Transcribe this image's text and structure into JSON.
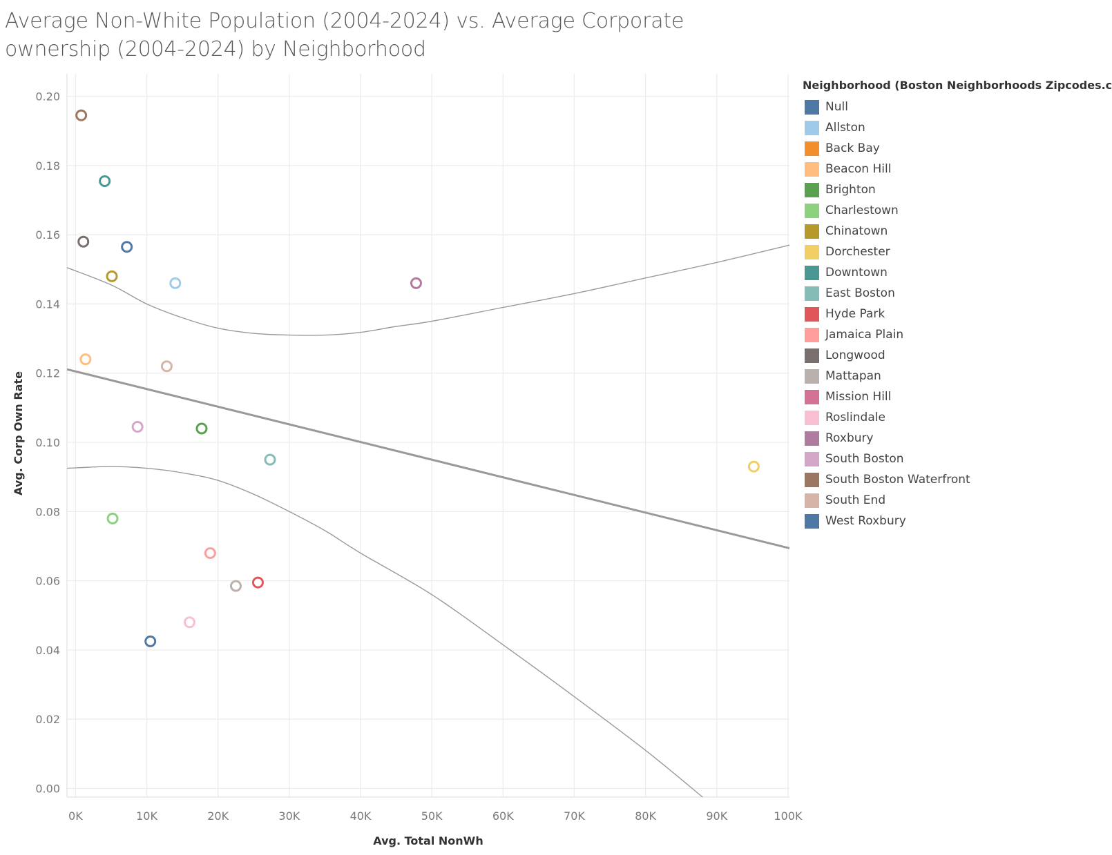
{
  "title": "Average Non-White Population (2004-2024) vs. Average Corporate ownership (2004-2024) by Neighborhood",
  "legend": {
    "title": "Neighborhood (Boston Neighborhoods Zipcodes.csv)",
    "items": [
      {
        "label": "Null",
        "color": "#4e79a7"
      },
      {
        "label": "Allston",
        "color": "#a0cbe8"
      },
      {
        "label": "Back Bay",
        "color": "#f28e2b"
      },
      {
        "label": "Beacon Hill",
        "color": "#ffbe7d"
      },
      {
        "label": "Brighton",
        "color": "#59a14f"
      },
      {
        "label": "Charlestown",
        "color": "#8cd17d"
      },
      {
        "label": "Chinatown",
        "color": "#b6992d"
      },
      {
        "label": "Dorchester",
        "color": "#f1ce63"
      },
      {
        "label": "Downtown",
        "color": "#499894"
      },
      {
        "label": "East Boston",
        "color": "#86bcb6"
      },
      {
        "label": "Hyde Park",
        "color": "#e15759"
      },
      {
        "label": "Jamaica Plain",
        "color": "#ff9d9a"
      },
      {
        "label": "Longwood",
        "color": "#79706e"
      },
      {
        "label": "Mattapan",
        "color": "#bab0ac"
      },
      {
        "label": "Mission Hill",
        "color": "#d37295"
      },
      {
        "label": "Roslindale",
        "color": "#fabfd2"
      },
      {
        "label": "Roxbury",
        "color": "#b07aa1"
      },
      {
        "label": "South Boston",
        "color": "#d4a6c8"
      },
      {
        "label": "South Boston Waterfront",
        "color": "#9d7660"
      },
      {
        "label": "South End",
        "color": "#d7b5a6"
      },
      {
        "label": "West Roxbury",
        "color": "#4e79a7"
      }
    ]
  },
  "chart_data": {
    "type": "scatter",
    "xlabel": "Avg. Total NonWh",
    "ylabel": "Avg. Corp Own Rate",
    "xlim": [
      -1200,
      100200
    ],
    "ylim": [
      -0.0025,
      0.2065
    ],
    "xticks": [
      0,
      10000,
      20000,
      30000,
      40000,
      50000,
      60000,
      70000,
      80000,
      90000,
      100000
    ],
    "xtick_labels": [
      "0K",
      "10K",
      "20K",
      "30K",
      "40K",
      "50K",
      "60K",
      "70K",
      "80K",
      "90K",
      "100K"
    ],
    "yticks": [
      0,
      0.02,
      0.04,
      0.06,
      0.08,
      0.1,
      0.12,
      0.14,
      0.16,
      0.18,
      0.2
    ],
    "ytick_labels": [
      "0.00",
      "0.02",
      "0.04",
      "0.06",
      "0.08",
      "0.10",
      "0.12",
      "0.14",
      "0.16",
      "0.18",
      "0.20"
    ],
    "grid": true,
    "marker": "hollow-circle",
    "legend_position": "right",
    "points": [
      {
        "x": 7200,
        "y": 0.1565,
        "color": "#4e79a7"
      },
      {
        "x": 14000,
        "y": 0.146,
        "color": "#a0cbe8"
      },
      {
        "x": 1400,
        "y": 0.124,
        "color": "#ffbe7d"
      },
      {
        "x": 17700,
        "y": 0.104,
        "color": "#59a14f"
      },
      {
        "x": 5200,
        "y": 0.078,
        "color": "#8cd17d"
      },
      {
        "x": 5100,
        "y": 0.148,
        "color": "#b6992d"
      },
      {
        "x": 95200,
        "y": 0.093,
        "color": "#f1ce63"
      },
      {
        "x": 4100,
        "y": 0.1755,
        "color": "#499894"
      },
      {
        "x": 27300,
        "y": 0.095,
        "color": "#86bcb6"
      },
      {
        "x": 25600,
        "y": 0.0595,
        "color": "#e15759"
      },
      {
        "x": 18900,
        "y": 0.068,
        "color": "#ff9d9a"
      },
      {
        "x": 1100,
        "y": 0.158,
        "color": "#79706e"
      },
      {
        "x": 22500,
        "y": 0.0585,
        "color": "#bab0ac"
      },
      {
        "x": 16000,
        "y": 0.048,
        "color": "#fabfd2"
      },
      {
        "x": 47800,
        "y": 0.146,
        "color": "#b07aa1"
      },
      {
        "x": 8700,
        "y": 0.1045,
        "color": "#d4a6c8"
      },
      {
        "x": 800,
        "y": 0.1945,
        "color": "#9d7660"
      },
      {
        "x": 12800,
        "y": 0.122,
        "color": "#d7b5a6"
      },
      {
        "x": 10500,
        "y": 0.0425,
        "color": "#4e79a7"
      }
    ],
    "trend_line": {
      "type": "linear",
      "intercept": 0.1205,
      "slope": -5.1e-07
    },
    "confidence_band": {
      "upper": [
        [
          -1200,
          0.1505
        ],
        [
          5000,
          0.1455
        ],
        [
          10000,
          0.14
        ],
        [
          15000,
          0.136
        ],
        [
          20000,
          0.133
        ],
        [
          25000,
          0.1315
        ],
        [
          30000,
          0.131
        ],
        [
          35000,
          0.131
        ],
        [
          40000,
          0.1318
        ],
        [
          45000,
          0.1335
        ],
        [
          50000,
          0.135
        ],
        [
          60000,
          0.139
        ],
        [
          70000,
          0.143
        ],
        [
          80000,
          0.1475
        ],
        [
          90000,
          0.152
        ],
        [
          100200,
          0.157
        ]
      ],
      "lower": [
        [
          -1200,
          0.0925
        ],
        [
          5000,
          0.093
        ],
        [
          10000,
          0.0925
        ],
        [
          15000,
          0.0912
        ],
        [
          20000,
          0.089
        ],
        [
          25000,
          0.085
        ],
        [
          30000,
          0.08
        ],
        [
          35000,
          0.0745
        ],
        [
          40000,
          0.068
        ],
        [
          50000,
          0.056
        ],
        [
          60000,
          0.0415
        ],
        [
          70000,
          0.0265
        ],
        [
          80000,
          0.011
        ],
        [
          88000,
          -0.0025
        ]
      ]
    }
  }
}
